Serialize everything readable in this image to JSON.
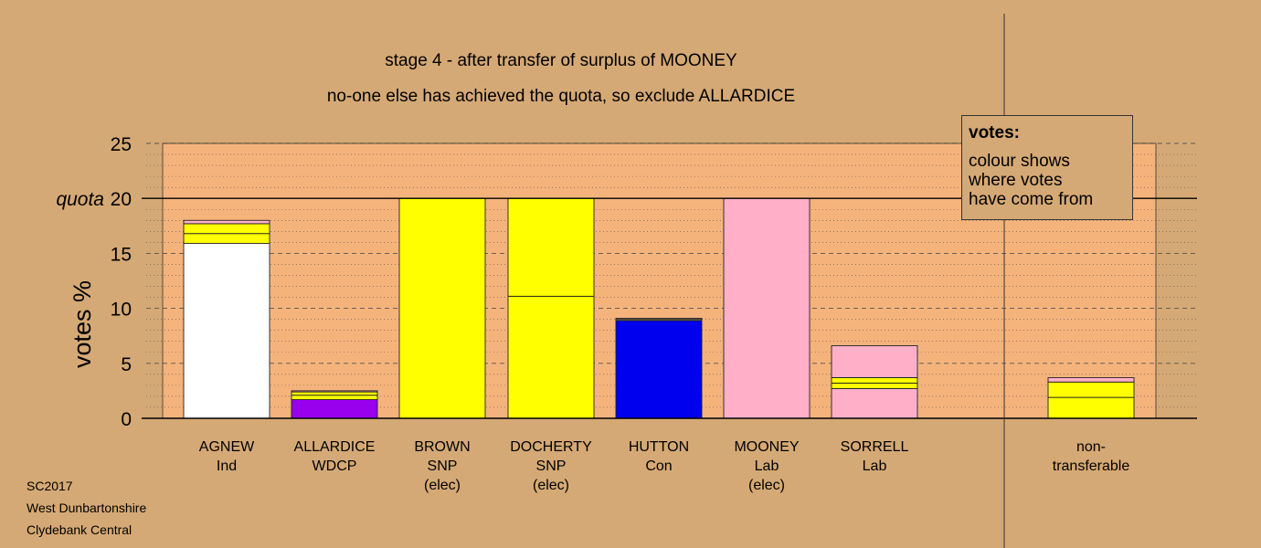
{
  "chart_data": {
    "type": "bar",
    "stacked": true,
    "title": "stage 4 - after transfer of surplus of MOONEY",
    "subtitle": "no-one else has achieved the quota, so exclude ALLARDICE",
    "ylabel": "votes %",
    "ylim": [
      0,
      25
    ],
    "yticks": [
      0,
      5,
      10,
      15,
      20,
      25
    ],
    "quota": {
      "label": "quota",
      "value": 20
    },
    "grid": true,
    "categories": [
      {
        "name": "AGNEW",
        "party": "Ind",
        "status": "",
        "segments": [
          {
            "color": "#ffffff",
            "value": 15.9
          },
          {
            "color": "#ffff00",
            "value": 0.9
          },
          {
            "color": "#ffff00",
            "value": 0.9
          },
          {
            "color": "#ffb0c8",
            "value": 0.3
          }
        ]
      },
      {
        "name": "ALLARDICE",
        "party": "WDCP",
        "status": "",
        "segments": [
          {
            "color": "#9900ee",
            "value": 1.7
          },
          {
            "color": "#ffff00",
            "value": 0.4
          },
          {
            "color": "#ffff00",
            "value": 0.3
          },
          {
            "color": "#ffb0c8",
            "value": 0.1
          }
        ]
      },
      {
        "name": "BROWN",
        "party": "SNP",
        "status": "(elec)",
        "segments": [
          {
            "color": "#ffff00",
            "value": 20
          }
        ]
      },
      {
        "name": "DOCHERTY",
        "party": "SNP",
        "status": "(elec)",
        "segments": [
          {
            "color": "#ffff00",
            "value": 11.1
          },
          {
            "color": "#ffff00",
            "value": 8.9
          }
        ]
      },
      {
        "name": "HUTTON",
        "party": "Con",
        "status": "",
        "segments": [
          {
            "color": "#0000ee",
            "value": 8.9
          },
          {
            "color": "#ffff00",
            "value": 0.1
          },
          {
            "color": "#ffb0c8",
            "value": 0.1
          }
        ]
      },
      {
        "name": "MOONEY",
        "party": "Lab",
        "status": "(elec)",
        "segments": [
          {
            "color": "#ffb0c8",
            "value": 20
          }
        ]
      },
      {
        "name": "SORRELL",
        "party": "Lab",
        "status": "",
        "segments": [
          {
            "color": "#ffb0c8",
            "value": 2.7
          },
          {
            "color": "#ffff00",
            "value": 0.5
          },
          {
            "color": "#ffff00",
            "value": 0.5
          },
          {
            "color": "#ffb0c8",
            "value": 2.9
          }
        ]
      }
    ],
    "nontransferable": {
      "name": "non-",
      "party": "transferable",
      "status": "",
      "segments": [
        {
          "color": "#ffff00",
          "value": 1.9
        },
        {
          "color": "#ffff00",
          "value": 1.4
        },
        {
          "color": "#ffb0c8",
          "value": 0.4
        }
      ]
    },
    "colors": {
      "background": "#d5a975",
      "plot": "#f5b37c"
    }
  },
  "legend": {
    "title": "votes:",
    "lines": [
      "colour shows",
      "where votes",
      "have come from"
    ]
  },
  "footer": {
    "line1": "SC2017",
    "line2": "West Dunbartonshire",
    "line3": "Clydebank Central"
  }
}
